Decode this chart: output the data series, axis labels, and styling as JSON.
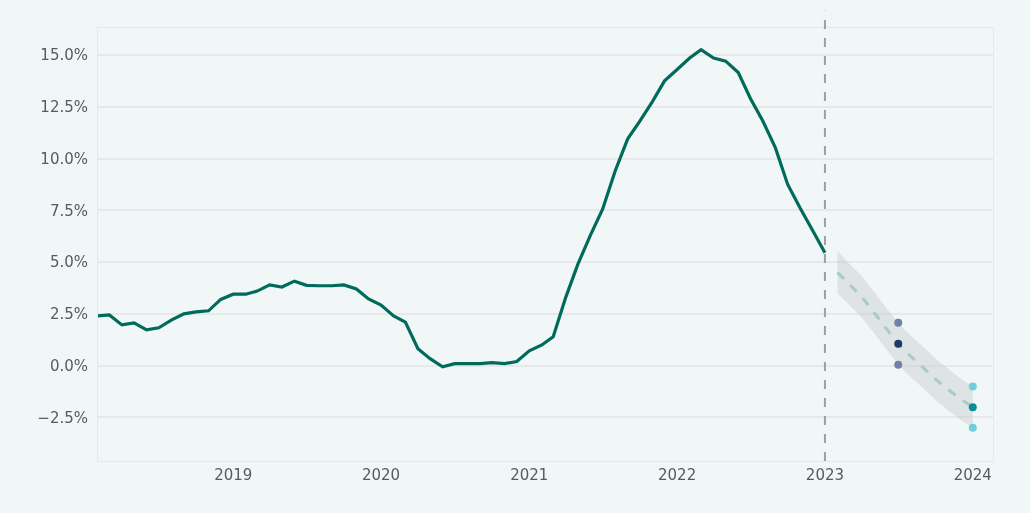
{
  "chart_data": {
    "type": "line",
    "xlim": [
      "2018-02-01",
      "2024-02-20"
    ],
    "xticks": [
      "2019",
      "2020",
      "2021",
      "2022",
      "2023",
      "2024"
    ],
    "ylim": [
      -4.6,
      16.3
    ],
    "yticks": [
      {
        "value": -2.5,
        "label": "−2.5%"
      },
      {
        "value": 0,
        "label": "0.0%"
      },
      {
        "value": 2.5,
        "label": "2.5%"
      },
      {
        "value": 5,
        "label": "5.0%"
      },
      {
        "value": 7.5,
        "label": "7.5%"
      },
      {
        "value": 10,
        "label": "10.0%"
      },
      {
        "value": 12.5,
        "label": "12.5%"
      },
      {
        "value": 15,
        "label": "15.0%"
      }
    ],
    "grid": "y",
    "ref_lines": [
      {
        "axis": "x",
        "value": "2023-01-01",
        "color": "#9aa0a3",
        "line_style": "dashed"
      }
    ],
    "series": [
      {
        "color": "#006b5a",
        "line_style": "solid",
        "marker": "none",
        "x": [
          "2018-02",
          "2018-03",
          "2018-04",
          "2018-05",
          "2018-06",
          "2018-07",
          "2018-08",
          "2018-09",
          "2018-10",
          "2018-11",
          "2018-12",
          "2019-01",
          "2019-02",
          "2019-03",
          "2019-04",
          "2019-05",
          "2019-06",
          "2019-07",
          "2019-08",
          "2019-09",
          "2019-10",
          "2019-11",
          "2019-12",
          "2020-01",
          "2020-02",
          "2020-03",
          "2020-04",
          "2020-05",
          "2020-06",
          "2020-07",
          "2020-08",
          "2020-09",
          "2020-10",
          "2020-11",
          "2020-12",
          "2021-01",
          "2021-02",
          "2021-03",
          "2021-04",
          "2021-05",
          "2021-06",
          "2021-07",
          "2021-08",
          "2021-09",
          "2021-10",
          "2021-11",
          "2021-12",
          "2022-01",
          "2022-02",
          "2022-03",
          "2022-04",
          "2022-05",
          "2022-06",
          "2022-07",
          "2022-08",
          "2022-09",
          "2022-10",
          "2022-11",
          "2022-12",
          "2023-01"
        ],
        "values": [
          2.4,
          2.45,
          1.97,
          2.07,
          1.73,
          1.83,
          2.2,
          2.5,
          2.6,
          2.65,
          3.2,
          3.45,
          3.45,
          3.6,
          3.9,
          3.8,
          4.08,
          3.88,
          3.86,
          3.86,
          3.9,
          3.7,
          3.22,
          2.93,
          2.4,
          2.1,
          0.82,
          0.34,
          -0.05,
          0.1,
          0.1,
          0.1,
          0.15,
          0.1,
          0.2,
          0.72,
          1.0,
          1.4,
          3.3,
          4.9,
          6.3,
          7.55,
          9.4,
          10.95,
          11.8,
          12.75,
          13.75,
          14.3,
          14.85,
          15.25,
          14.85,
          14.7,
          14.15,
          12.9,
          11.8,
          10.5,
          8.75,
          7.6,
          6.55,
          5.45
        ]
      },
      {
        "type": "line",
        "color": "#a9cbc4",
        "line_style": "dashed",
        "marker": "none",
        "x": [
          "2023-02",
          "2023-03",
          "2023-04",
          "2023-05",
          "2023-06",
          "2023-07",
          "2023-08",
          "2023-09",
          "2023-10",
          "2023-11",
          "2023-12",
          "2024-01"
        ],
        "values": [
          4.5,
          3.95,
          3.35,
          2.6,
          1.8,
          1.06,
          0.45,
          -0.1,
          -0.65,
          -1.15,
          -1.6,
          -2.0
        ],
        "upper": [
          5.55,
          4.95,
          4.35,
          3.6,
          2.8,
          2.07,
          1.45,
          0.9,
          0.35,
          -0.15,
          -0.6,
          -1.0
        ],
        "lower": [
          3.5,
          2.95,
          2.35,
          1.6,
          0.8,
          0.05,
          -0.55,
          -1.1,
          -1.65,
          -2.15,
          -2.6,
          -3.0
        ]
      },
      {
        "type": "scatter",
        "marker": "circle",
        "x": [
          "2023-07",
          "2023-07",
          "2023-07"
        ],
        "values": [
          2.07,
          1.06,
          0.05
        ],
        "colors": [
          "#6f80aa",
          "#1b3a6b",
          "#6f80aa"
        ]
      },
      {
        "type": "scatter",
        "marker": "circle",
        "x": [
          "2024-01",
          "2024-01",
          "2024-01"
        ],
        "values": [
          -1.0,
          -2.0,
          -3.0
        ],
        "colors": [
          "#6fcde0",
          "#0a8a9a",
          "#6fcde0"
        ]
      }
    ]
  }
}
